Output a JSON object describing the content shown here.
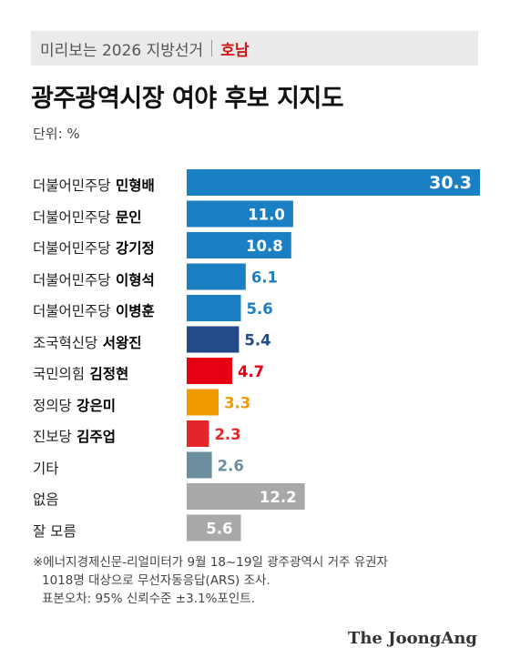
{
  "header": {
    "series": "미리보는 2026 지방선거",
    "region": "호남"
  },
  "title": "광주광역시장 여야 후보 지지도",
  "unit": "단위: %",
  "chart_data": {
    "type": "bar",
    "orientation": "horizontal",
    "categories": [
      {
        "party": "더불어민주당",
        "name": "민형배"
      },
      {
        "party": "더불어민주당",
        "name": "문인"
      },
      {
        "party": "더불어민주당",
        "name": "강기정"
      },
      {
        "party": "더불어민주당",
        "name": "이형석"
      },
      {
        "party": "더불어민주당",
        "name": "이병훈"
      },
      {
        "party": "조국혁신당",
        "name": "서왕진"
      },
      {
        "party": "국민의힘",
        "name": "김정현"
      },
      {
        "party": "정의당",
        "name": "강은미"
      },
      {
        "party": "진보당",
        "name": "김주업"
      },
      {
        "party": "기타",
        "name": ""
      },
      {
        "party": "없음",
        "name": ""
      },
      {
        "party": "잘 모름",
        "name": ""
      }
    ],
    "values": [
      30.3,
      11.0,
      10.8,
      6.1,
      5.6,
      5.4,
      4.7,
      3.3,
      2.3,
      2.6,
      12.2,
      5.6
    ],
    "value_labels": [
      "30.3",
      "11.0",
      "10.8",
      "6.1",
      "5.6",
      "5.4",
      "4.7",
      "3.3",
      "2.3",
      "2.6",
      "12.2",
      "5.6"
    ],
    "colors": [
      "#1b7fc4",
      "#1b7fc4",
      "#1b7fc4",
      "#1b7fc4",
      "#1b7fc4",
      "#254a8a",
      "#e60012",
      "#f39a00",
      "#e4252c",
      "#6c8fa0",
      "#a8a8a8",
      "#a8a8a8"
    ],
    "label_inside": [
      true,
      true,
      true,
      false,
      false,
      false,
      false,
      false,
      false,
      false,
      true,
      true
    ],
    "xlim": [
      0,
      30.3
    ]
  },
  "notes": [
    "※에너지경제신문-리얼미터가 9월 18~19일 광주광역시 거주 유권자",
    "1018명 대상으로 무선자동응답(ARS) 조사.",
    "표본오차: 95% 신뢰수준 ±3.1%포인트."
  ],
  "brand": "The JoongAng"
}
